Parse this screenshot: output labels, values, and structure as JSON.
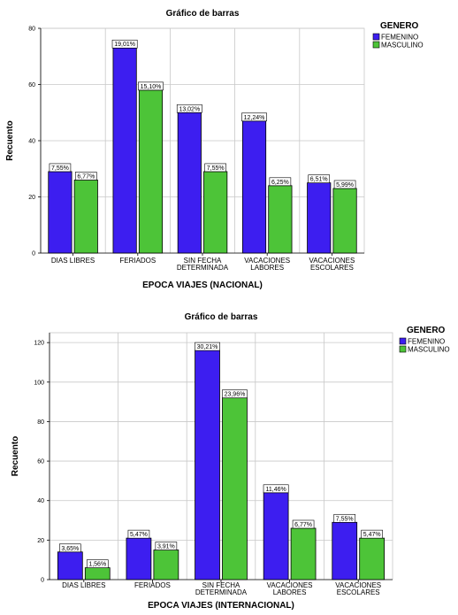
{
  "chart_data": [
    {
      "type": "bar",
      "title": "Gráfico de barras",
      "xlabel": "EPOCA VIAJES (NACIONAL)",
      "ylabel": "Recuento",
      "ylim": [
        0,
        80
      ],
      "yticks": [
        0,
        20,
        40,
        60,
        80
      ],
      "categories": [
        "DIAS LIBRES",
        "FERIADOS",
        "SIN FECHA DETERMINADA",
        "VACACIONES LABORES",
        "VACACIONES ESCOLARES"
      ],
      "category_lines": [
        [
          "DIAS LIBRES"
        ],
        [
          "FERIADOS"
        ],
        [
          "SIN FECHA",
          "DETERMINADA"
        ],
        [
          "VACACIONES",
          "LABORES"
        ],
        [
          "VACACIONES",
          "ESCOLARES"
        ]
      ],
      "legend_title": "GENERO",
      "legend_position": "top-right",
      "grid": true,
      "series": [
        {
          "name": "FEMENINO",
          "color": "#3d1ef0",
          "values": [
            29,
            73,
            50,
            47,
            25
          ],
          "labels": [
            "7,55%",
            "19,01%",
            "13,02%",
            "12,24%",
            "6,51%"
          ]
        },
        {
          "name": "MASCULINO",
          "color": "#4dc438",
          "values": [
            26,
            58,
            29,
            24,
            23
          ],
          "labels": [
            "6,77%",
            "15,10%",
            "7,55%",
            "6,25%",
            "5,99%"
          ]
        }
      ]
    },
    {
      "type": "bar",
      "title": "Gráfico de barras",
      "xlabel": "EPOCA VIAJES (INTERNACIONAL)",
      "ylabel": "Recuento",
      "ylim": [
        0,
        125
      ],
      "yticks": [
        0,
        20,
        40,
        60,
        80,
        100,
        120
      ],
      "categories": [
        "DIAS LIBRES",
        "FERIADOS",
        "SIN FECHA DETERMINADA",
        "VACACIONES LABORES",
        "VACACIONES ESCOLARES"
      ],
      "category_lines": [
        [
          "DIAS LIBRES"
        ],
        [
          "FERIADOS"
        ],
        [
          "SIN FECHA",
          "DETERMINADA"
        ],
        [
          "VACACIONES",
          "LABORES"
        ],
        [
          "VACACIONES",
          "ESCOLARES"
        ]
      ],
      "legend_title": "GENERO",
      "legend_position": "top-right",
      "grid": true,
      "series": [
        {
          "name": "FEMENINO",
          "color": "#3d1ef0",
          "values": [
            14,
            21,
            116,
            44,
            29
          ],
          "labels": [
            "3,65%",
            "5,47%",
            "30,21%",
            "11,46%",
            "7,55%"
          ]
        },
        {
          "name": "MASCULINO",
          "color": "#4dc438",
          "values": [
            6,
            15,
            92,
            26,
            21
          ],
          "labels": [
            "1,56%",
            "3,91%",
            "23,96%",
            "6,77%",
            "5,47%"
          ]
        }
      ]
    }
  ]
}
